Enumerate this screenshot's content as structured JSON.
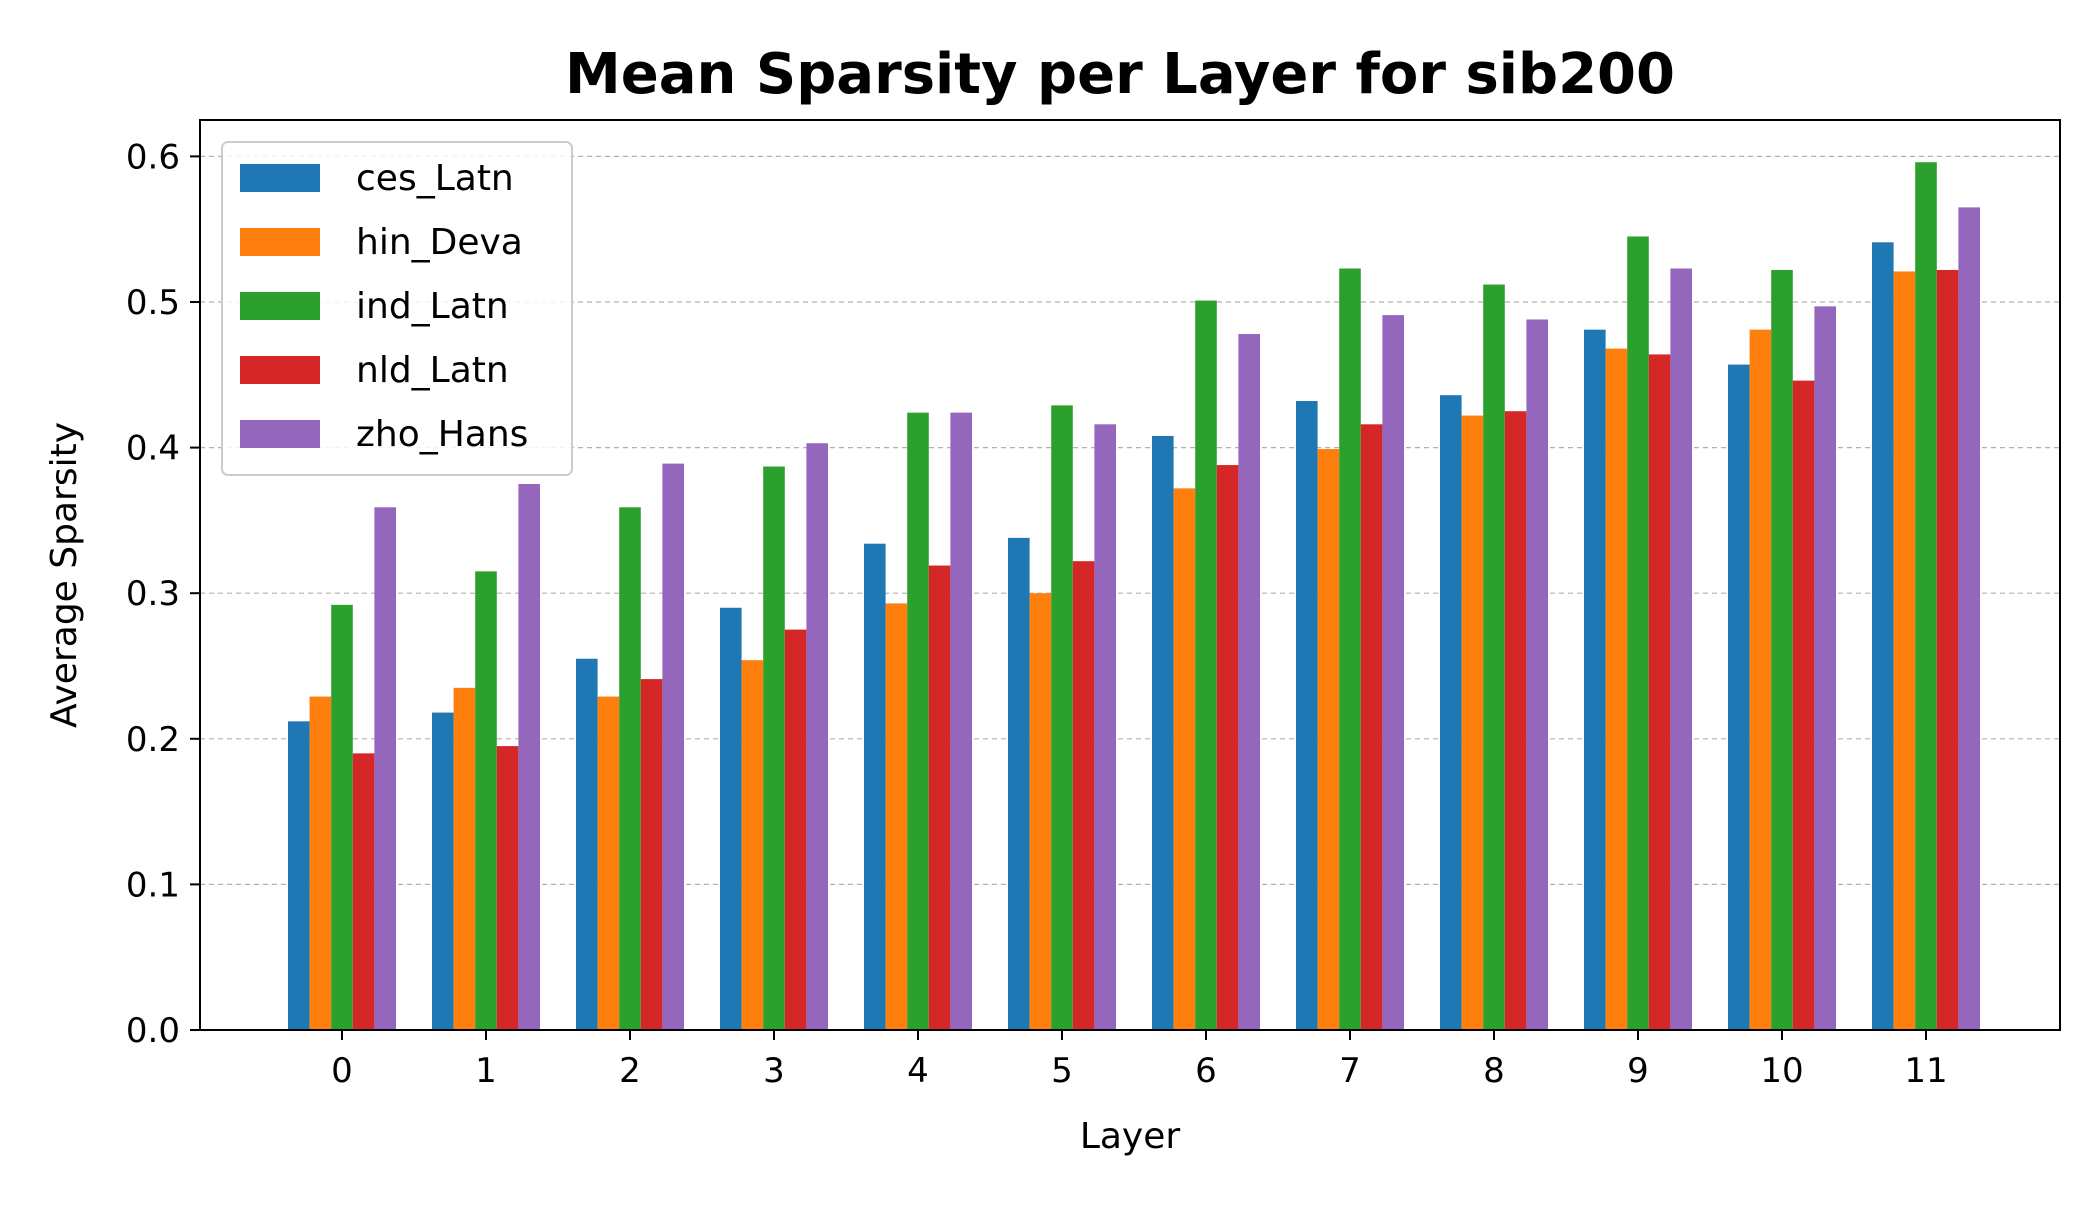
{
  "chart_data": {
    "type": "bar",
    "title": "Mean Sparsity per Layer for sib200",
    "xlabel": "Layer",
    "ylabel": "Average Sparsity",
    "categories": [
      "0",
      "1",
      "2",
      "3",
      "4",
      "5",
      "6",
      "7",
      "8",
      "9",
      "10",
      "11"
    ],
    "ylim": [
      0,
      0.625
    ],
    "yticks": [
      "0.0",
      "0.1",
      "0.2",
      "0.3",
      "0.4",
      "0.5",
      "0.6"
    ],
    "grid": "y-dashed",
    "legend_position": "top-left",
    "series": [
      {
        "name": "ces_Latn",
        "color": "#1f77b4",
        "values": [
          0.212,
          0.218,
          0.255,
          0.29,
          0.334,
          0.338,
          0.408,
          0.432,
          0.436,
          0.481,
          0.457,
          0.541
        ]
      },
      {
        "name": "hin_Deva",
        "color": "#ff7f0e",
        "values": [
          0.229,
          0.235,
          0.229,
          0.254,
          0.293,
          0.3,
          0.372,
          0.399,
          0.422,
          0.468,
          0.481,
          0.521
        ]
      },
      {
        "name": "ind_Latn",
        "color": "#2ca02c",
        "values": [
          0.292,
          0.315,
          0.359,
          0.387,
          0.424,
          0.429,
          0.501,
          0.523,
          0.512,
          0.545,
          0.522,
          0.596
        ]
      },
      {
        "name": "nld_Latn",
        "color": "#d62728",
        "values": [
          0.19,
          0.195,
          0.241,
          0.275,
          0.319,
          0.322,
          0.388,
          0.416,
          0.425,
          0.464,
          0.446,
          0.522
        ]
      },
      {
        "name": "zho_Hans",
        "color": "#9467bd",
        "values": [
          0.359,
          0.375,
          0.389,
          0.403,
          0.424,
          0.416,
          0.478,
          0.491,
          0.488,
          0.523,
          0.497,
          0.565
        ]
      }
    ]
  }
}
